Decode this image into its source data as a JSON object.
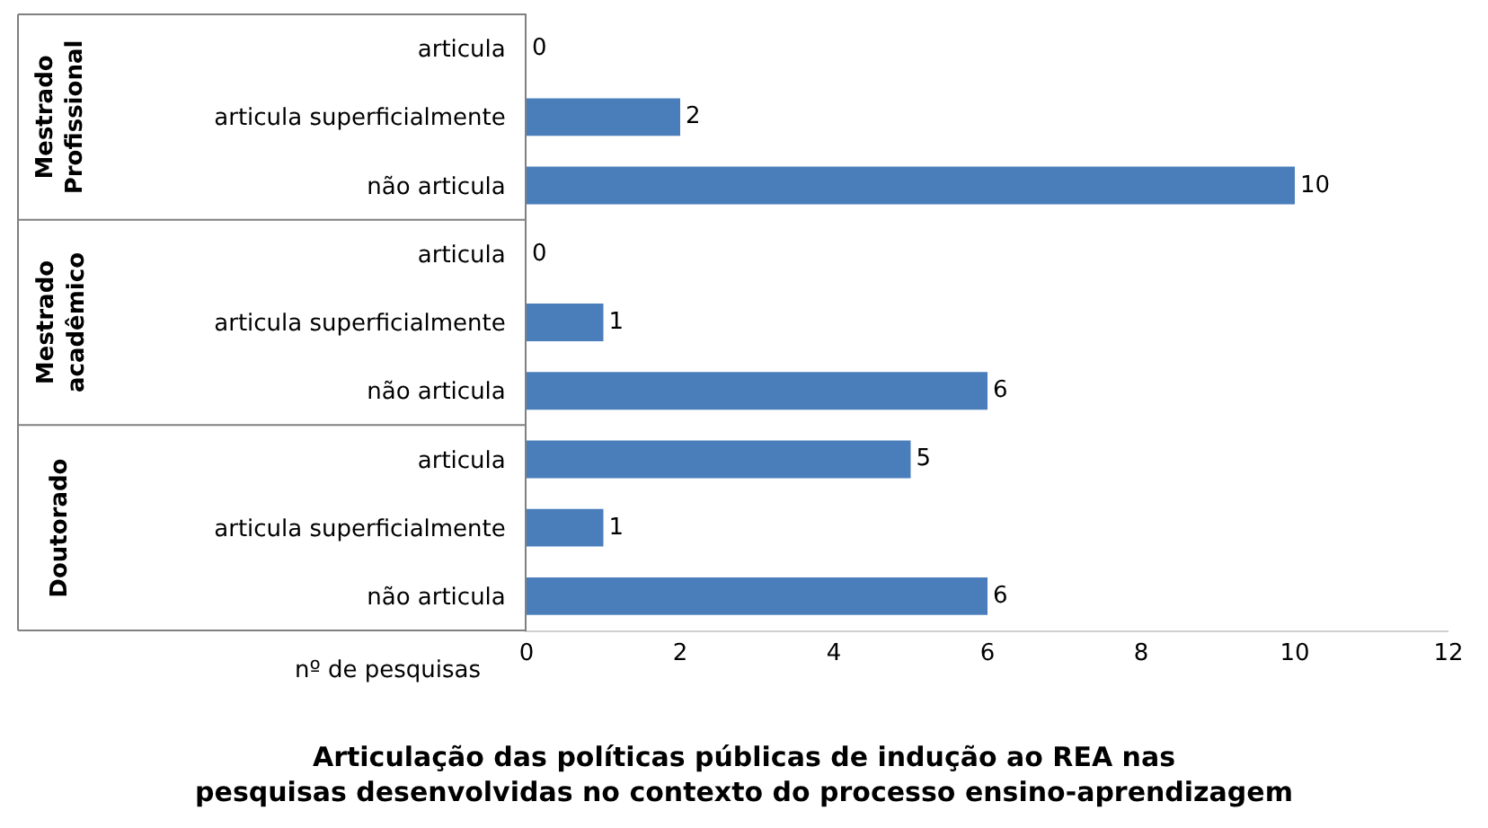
{
  "chart_data": {
    "type": "bar",
    "orientation": "horizontal",
    "title": "Articulação das políticas públicas de indução ao REA nas pesquisas desenvolvidas no contexto do processo ensino-aprendizagem",
    "xlabel": "nº de pesquisas",
    "categories": [
      "articula",
      "articula superficialmente",
      "não articula",
      "articula",
      "articula superficialmente",
      "não articula",
      "articula",
      "articula superficialmente",
      "não articula"
    ],
    "values": [
      0,
      2,
      10,
      0,
      1,
      6,
      5,
      1,
      6
    ],
    "color": "#4a7ebb",
    "xlim": [
      0,
      12
    ],
    "xticks": [
      0,
      2,
      4,
      6,
      8,
      10,
      12
    ],
    "data_labels": true,
    "grid": false,
    "annotations": [
      "Mestrado Profissional",
      "Mestrado acadêmico",
      "Doutorado"
    ]
  }
}
